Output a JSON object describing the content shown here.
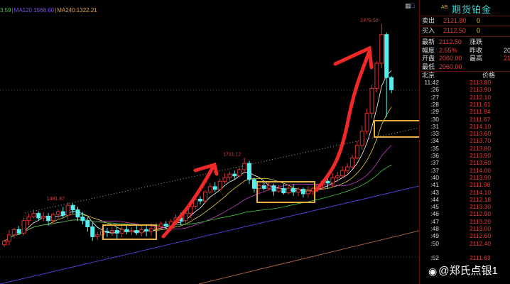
{
  "ma_legend": [
    {
      "label": "3.59",
      "color": "#3ec83e"
    },
    {
      "label": "MA120:1568.60",
      "color": "#7a4ff0"
    },
    {
      "label": "MA240:1322.21",
      "color": "#e0a050"
    }
  ],
  "chart_data": {
    "type": "candlestick",
    "annotations": [
      {
        "label": "1481.97",
        "value": 1481.97,
        "index": 13
      },
      {
        "label": "1731.12",
        "value": 1731.12,
        "index": 49
      },
      {
        "label": "2478.50",
        "value": 2478.5,
        "index": 77
      }
    ],
    "closes": [
      1265,
      1300,
      1330,
      1310,
      1380,
      1400,
      1420,
      1395,
      1405,
      1380,
      1415,
      1430,
      1410,
      1465,
      1440,
      1400,
      1380,
      1345,
      1290,
      1300,
      1320,
      1315,
      1325,
      1310,
      1330,
      1318,
      1325,
      1312,
      1330,
      1322,
      1335,
      1345,
      1360,
      1350,
      1375,
      1395,
      1380,
      1420,
      1460,
      1500,
      1490,
      1540,
      1570,
      1555,
      1600,
      1620,
      1640,
      1630,
      1665,
      1700,
      1610,
      1560,
      1575,
      1560,
      1575,
      1545,
      1560,
      1535,
      1560,
      1540,
      1555,
      1530,
      1545,
      1560,
      1580,
      1600,
      1590,
      1620,
      1630,
      1660,
      1680,
      1730,
      1800,
      1880,
      1980,
      2120,
      2260,
      2420,
      2180,
      2112
    ],
    "up_color": "#e03030",
    "down_color": "#54f0f0",
    "grid": "dotted"
  },
  "panel": {
    "badge": "AB",
    "title": "期货铂金",
    "sell_label": "卖出",
    "sell_price": "2121.80",
    "sell_qty": "0",
    "buy_label": "买入",
    "buy_price": "2112.50",
    "buy_qty": "0",
    "stats": [
      {
        "l1": "最新",
        "v1": "2112.50",
        "l2": "涨跌",
        "v2": ""
      },
      {
        "l1": "幅度",
        "v1": "2.55%",
        "l2": "昨收",
        "v2": "20"
      },
      {
        "l1": "开盘",
        "v1": "2060.00",
        "l2": "最高",
        "v2": "21"
      },
      {
        "l1": "最低",
        "v1": "2060.00",
        "l2": "",
        "v2": ""
      }
    ],
    "ticks_header": {
      "time": "北京",
      "price": "价格"
    },
    "ticks": [
      {
        "time": "11:42",
        "price": "2113.80"
      },
      {
        "time": ":26",
        "price": "2113.90"
      },
      {
        "time": ":27",
        "price": "2112.10"
      },
      {
        "time": ":28",
        "price": "2111.61"
      },
      {
        "time": ":29",
        "price": "2111.84"
      },
      {
        "time": ":30",
        "price": "2111.67"
      },
      {
        "time": ":31",
        "price": "2114.10"
      },
      {
        "time": ":33",
        "price": "2113.60"
      },
      {
        "time": ":34",
        "price": "2113.70"
      },
      {
        "time": ":35",
        "price": "2113.80"
      },
      {
        "time": ":36",
        "price": "2113.90"
      },
      {
        "time": ":37",
        "price": "2113.60"
      },
      {
        "time": ":37",
        "price": "2114.00"
      },
      {
        "time": ":40",
        "price": "2113.90"
      },
      {
        "time": ":41",
        "price": "2111.98"
      },
      {
        "time": ":43",
        "price": "2114.10"
      },
      {
        "time": ":44",
        "price": "2112.18"
      },
      {
        "time": ":45",
        "price": "2113.30"
      },
      {
        "time": ":46",
        "price": "2112.90"
      },
      {
        "time": ":47",
        "price": "2113.20"
      },
      {
        "time": ":48",
        "price": "2113.00"
      },
      {
        "time": ":49",
        "price": "2112.60"
      },
      {
        "time": ":50",
        "price": "2112.40"
      },
      {
        "time": "",
        "price": ""
      },
      {
        "time": ":52",
        "price": "2111.63"
      }
    ]
  },
  "watermark": "@郑氏点银1"
}
